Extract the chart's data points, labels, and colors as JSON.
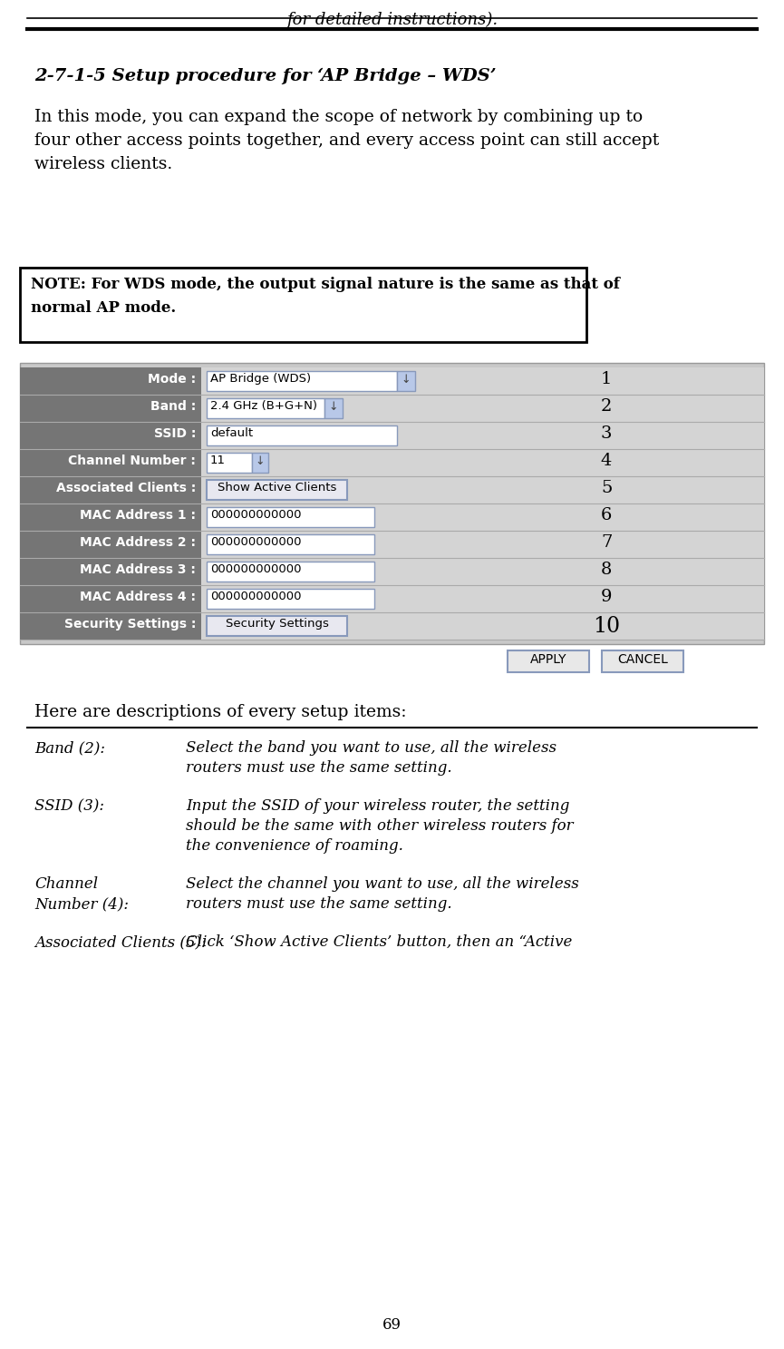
{
  "bg_color": "#ffffff",
  "header_italic_text": "for detailed instructions).",
  "section_title": "2-7-1-5 Setup procedure for ‘AP Bridge – WDS’",
  "intro_lines": [
    "In this mode, you can expand the scope of network by combining up to",
    "four other access points together, and every access point can still accept",
    "wireless clients."
  ],
  "note_line1": "NOTE: For WDS mode, the output signal nature is the same as that of",
  "note_line2": "normal AP mode.",
  "table_rows": [
    {
      "label": "Mode :",
      "content": "AP Bridge (WDS)",
      "type": "dropdown_wide",
      "number": "1"
    },
    {
      "label": "Band :",
      "content": "2.4 GHz (B+G+N)",
      "type": "dropdown_small",
      "number": "2"
    },
    {
      "label": "SSID :",
      "content": "default",
      "type": "input_wide",
      "number": "3"
    },
    {
      "label": "Channel Number :",
      "content": "11",
      "type": "dropdown_tiny",
      "number": "4"
    },
    {
      "label": "Associated Clients :",
      "content": "Show Active Clients",
      "type": "button",
      "number": "5"
    },
    {
      "label": "MAC Address 1 :",
      "content": "000000000000",
      "type": "input",
      "number": "6"
    },
    {
      "label": "MAC Address 2 :",
      "content": "000000000000",
      "type": "input",
      "number": "7"
    },
    {
      "label": "MAC Address 3 :",
      "content": "000000000000",
      "type": "input",
      "number": "8"
    },
    {
      "label": "MAC Address 4 :",
      "content": "000000000000",
      "type": "input",
      "number": "9"
    },
    {
      "label": "Security Settings :",
      "content": "Security Settings",
      "type": "button",
      "number": "10"
    }
  ],
  "desc_items": [
    {
      "term_lines": [
        "Band (2):"
      ],
      "desc_lines": [
        "Select the band you want to use, all the wireless",
        "routers must use the same setting."
      ]
    },
    {
      "term_lines": [
        "SSID (3):"
      ],
      "desc_lines": [
        "Input the SSID of your wireless router, the setting",
        "should be the same with other wireless routers for",
        "the convenience of roaming."
      ]
    },
    {
      "term_lines": [
        "Channel",
        "Number (4):"
      ],
      "desc_lines": [
        "Select the channel you want to use, all the wireless",
        "routers must use the same setting."
      ]
    },
    {
      "term_lines": [
        "Associated Clients (5):"
      ],
      "desc_lines": [
        "Click ‘Show Active Clients’ button, then an “Active"
      ]
    }
  ],
  "footer_text": "69",
  "label_bg": "#757575",
  "content_bg": "#d4d4d4",
  "table_outer_bg": "#c8c8c8"
}
